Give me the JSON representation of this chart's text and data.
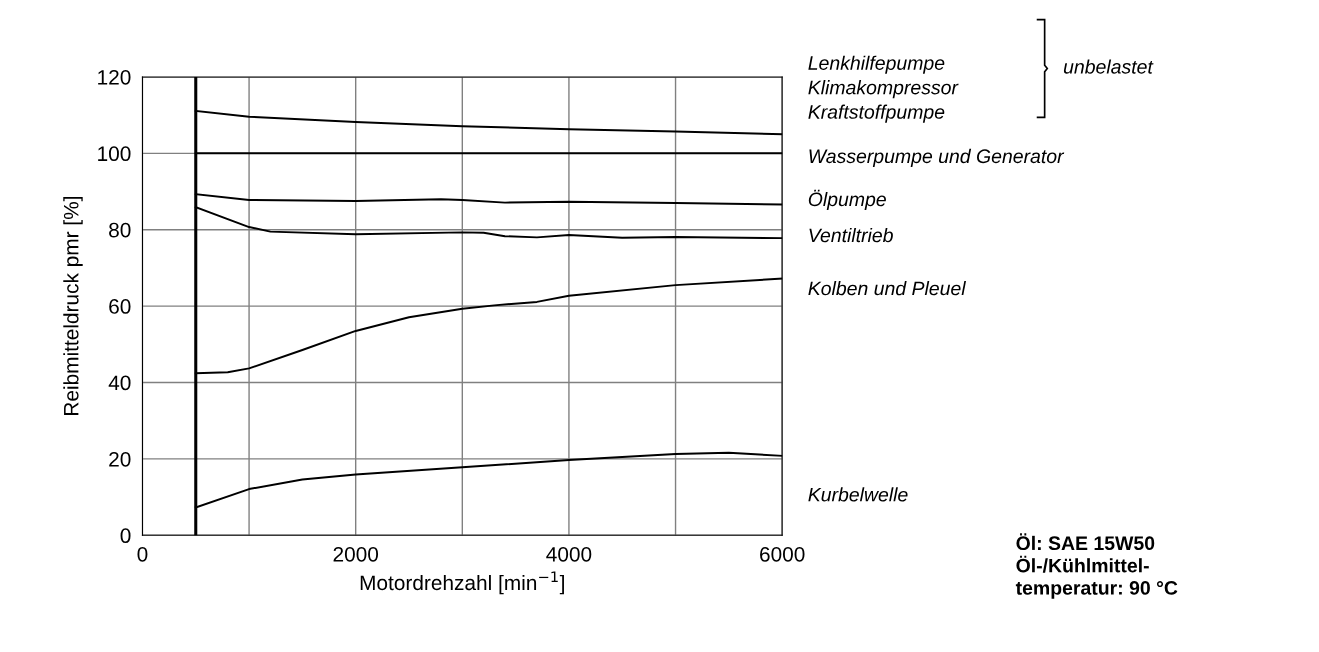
{
  "chart_data": {
    "type": "line",
    "xlabel": "Motordrehzahl [min$^{−1}$]",
    "ylabel": "Reibmitteldruck pmr [%]",
    "xlim": [
      0,
      6000
    ],
    "ylim": [
      0,
      120
    ],
    "xticks": [
      0,
      {
        "value": 1000,
        "label": null
      },
      2000,
      {
        "value": 3000,
        "label": null
      },
      4000,
      {
        "value": 5000,
        "label": null
      },
      6000
    ],
    "yticks": [
      0,
      20,
      40,
      60,
      80,
      100,
      120
    ],
    "grid": true,
    "legend": false,
    "marker": "none",
    "line_style": "solid",
    "series": [
      {
        "name": "Lenkhilfepumpe\nKlimakompressor\nKraftstoffpumpe",
        "color": "#000000",
        "x": [
          500,
          1000,
          2000,
          3000,
          4000,
          5000,
          6000
        ],
        "values": [
          111.1,
          109.6,
          108.2,
          107.1,
          106.3,
          105.7,
          105.0
        ]
      },
      {
        "name": "Wasserpumpe und Generator",
        "color": "#000000",
        "x": [
          500,
          6000
        ],
        "values": [
          100,
          100
        ]
      },
      {
        "name": "Ölpumpe",
        "color": "#000000",
        "x": [
          500,
          1000,
          2000,
          2800,
          3000,
          3400,
          4000,
          5000,
          6000
        ],
        "values": [
          89.3,
          87.8,
          87.5,
          88.0,
          87.8,
          87.1,
          87.3,
          87.0,
          86.6
        ]
      },
      {
        "name": "Ventiltrieb",
        "color": "#000000",
        "x": [
          500,
          1000,
          1200,
          2000,
          3000,
          3200,
          3400,
          3700,
          4000,
          4500,
          5000,
          6000
        ],
        "values": [
          85.9,
          80.7,
          79.5,
          78.8,
          79.3,
          79.2,
          78.3,
          78.0,
          78.6,
          77.9,
          78.1,
          77.8
        ]
      },
      {
        "name": "Kolben und Pleuel",
        "color": "#000000",
        "x": [
          500,
          800,
          1000,
          1500,
          2000,
          2500,
          3000,
          3300,
          3700,
          4000,
          5000,
          6000
        ],
        "values": [
          42.4,
          42.7,
          43.7,
          48.5,
          53.5,
          57.1,
          59.3,
          60.2,
          61.1,
          62.7,
          65.5,
          67.2
        ]
      },
      {
        "name": "Kurbelwelle",
        "color": "#000000",
        "x": [
          500,
          1000,
          1500,
          2000,
          3000,
          4000,
          5000,
          5500,
          6000
        ],
        "values": [
          7.3,
          12.1,
          14.6,
          15.9,
          17.8,
          19.7,
          21.3,
          21.6,
          20.8
        ]
      }
    ],
    "ref_lines": [
      {
        "axis": "x",
        "value": 500,
        "color": "#000000"
      }
    ],
    "annotations": [
      "unbelastet",
      "Öl: SAE 15W50\nÖl-/Kühlmittel-\ntemperatur: 90 °C"
    ]
  }
}
